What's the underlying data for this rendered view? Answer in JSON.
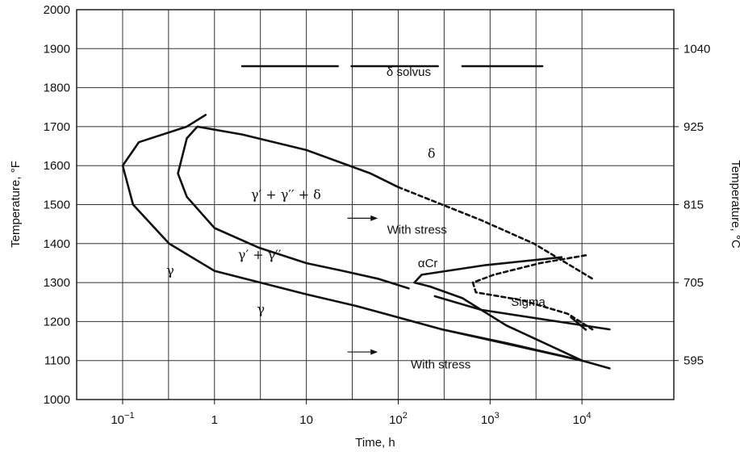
{
  "chart_data": {
    "type": "line",
    "title": "",
    "xlabel": "Time, h",
    "ylabel": "Temperature, °F",
    "y2label": "Temperature, °C",
    "x_scale": "log",
    "xlim": [
      0.0316,
      100000
    ],
    "ylim": [
      1000,
      2000
    ],
    "grid": true,
    "x_major_ticks": [
      0.1,
      1,
      10,
      100,
      1000,
      10000
    ],
    "x_tick_labels": [
      "10",
      "1",
      "10",
      "10",
      "10",
      "10"
    ],
    "x_tick_exponents": [
      "−1",
      "",
      "",
      "2",
      "3",
      "4"
    ],
    "x_grid_lines": [
      0.1,
      0.316,
      1,
      3.16,
      10,
      31.6,
      100,
      316,
      1000,
      3160,
      10000
    ],
    "y_ticks": [
      1000,
      1100,
      1200,
      1300,
      1400,
      1500,
      1600,
      1700,
      1800,
      1900,
      2000
    ],
    "y2_ticks": [
      {
        "f": 1100,
        "label": "595"
      },
      {
        "f": 1300,
        "label": "705"
      },
      {
        "f": 1500,
        "label": "815"
      },
      {
        "f": 1700,
        "label": "925"
      },
      {
        "f": 1900,
        "label": "1040"
      }
    ],
    "series": [
      {
        "style": "solid",
        "points": [
          [
            10000,
            1100
          ],
          [
            300,
            1180
          ],
          [
            35,
            1240
          ],
          [
            10,
            1270
          ],
          [
            1,
            1330
          ],
          [
            0.32,
            1400
          ],
          [
            0.13,
            1500
          ],
          [
            0.1,
            1600
          ],
          [
            0.15,
            1660
          ],
          [
            0.5,
            1700
          ],
          [
            0.8,
            1730
          ]
        ]
      },
      {
        "style": "solid",
        "points": [
          [
            130,
            1285
          ],
          [
            60,
            1310
          ],
          [
            25,
            1330
          ],
          [
            10,
            1350
          ],
          [
            3,
            1390
          ],
          [
            1,
            1440
          ],
          [
            0.5,
            1520
          ],
          [
            0.4,
            1580
          ],
          [
            0.5,
            1670
          ],
          [
            0.65,
            1700
          ],
          [
            2,
            1680
          ],
          [
            10,
            1640
          ],
          [
            50,
            1580
          ],
          [
            100,
            1545
          ]
        ]
      },
      {
        "style": "dashed",
        "points": [
          [
            100,
            1545
          ],
          [
            800,
            1460
          ],
          [
            3000,
            1400
          ],
          [
            13000,
            1310
          ]
        ]
      },
      {
        "style": "solid",
        "points": [
          [
            20000,
            1080
          ],
          [
            10000,
            1100
          ],
          [
            1500,
            1145
          ],
          [
            300,
            1180
          ]
        ]
      },
      {
        "style": "solid",
        "points": [
          [
            10000,
            1100
          ],
          [
            1500,
            1190
          ],
          [
            500,
            1260
          ],
          [
            220,
            1290
          ],
          [
            150,
            1300
          ],
          [
            180,
            1320
          ],
          [
            900,
            1345
          ],
          [
            6000,
            1365
          ]
        ]
      },
      {
        "style": "solid",
        "points": [
          [
            250,
            1265
          ],
          [
            800,
            1230
          ],
          [
            20000,
            1180
          ]
        ]
      },
      {
        "style": "dashed",
        "points": [
          [
            11000,
            1370
          ],
          [
            3500,
            1350
          ],
          [
            1100,
            1320
          ],
          [
            650,
            1300
          ],
          [
            700,
            1275
          ],
          [
            2200,
            1255
          ],
          [
            7000,
            1220
          ],
          [
            13000,
            1180
          ]
        ]
      },
      {
        "style": "solid",
        "points": [
          [
            2,
            1855
          ],
          [
            22,
            1855
          ]
        ]
      },
      {
        "style": "solid",
        "points": [
          [
            31,
            1855
          ],
          [
            270,
            1855
          ]
        ]
      },
      {
        "style": "solid",
        "points": [
          [
            500,
            1855
          ],
          [
            3700,
            1855
          ]
        ]
      },
      {
        "style": "solid",
        "points": [
          [
            7600,
            1211
          ],
          [
            11000,
            1179
          ]
        ]
      }
    ],
    "annotations": [
      {
        "text": "δ solvus",
        "x": 130,
        "y": 1830
      },
      {
        "text": "δ",
        "x": 230,
        "y": 1620
      },
      {
        "text": "γ′ + γ′′ + δ",
        "x": 6,
        "y": 1515
      },
      {
        "text": "γ′ + γ′′",
        "x": 3.1,
        "y": 1360
      },
      {
        "text": "γ",
        "x": 0.33,
        "y": 1320
      },
      {
        "text": "γ",
        "x": 3.2,
        "y": 1220
      },
      {
        "text": "With stress",
        "x": 160,
        "y": 1425
      },
      {
        "text": "αCr",
        "x": 210,
        "y": 1340
      },
      {
        "text": "Sigma",
        "x": 2600,
        "y": 1240
      },
      {
        "text": "With stress",
        "x": 290,
        "y": 1080
      }
    ],
    "arrows": [
      {
        "from": [
          28,
          1465
        ],
        "to": [
          60,
          1465
        ]
      },
      {
        "from": [
          28,
          1122
        ],
        "to": [
          60,
          1122
        ]
      }
    ]
  }
}
